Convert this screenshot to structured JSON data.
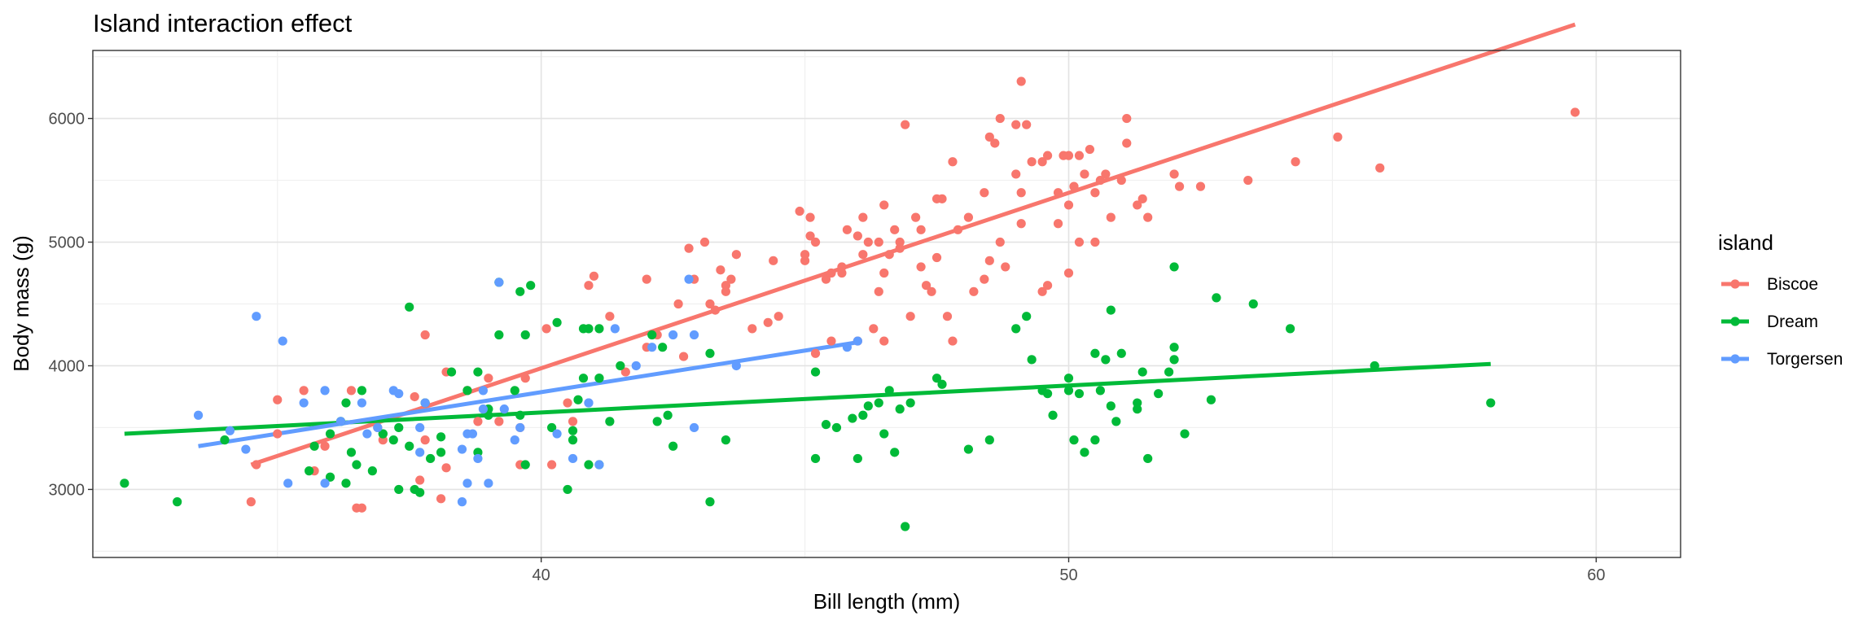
{
  "chart_data": {
    "type": "scatter",
    "title": "Island interaction effect",
    "xlabel": "Bill length (mm)",
    "ylabel": "Body mass (g)",
    "xlim": [
      31.5,
      61.6
    ],
    "ylim": [
      2450,
      6550
    ],
    "x_ticks": [
      40,
      50,
      60
    ],
    "y_ticks": [
      3000,
      4000,
      5000,
      6000
    ],
    "grid": true,
    "legend": {
      "title": "island",
      "position": "right"
    },
    "series": [
      {
        "name": "Biscoe",
        "color": "#F8766D",
        "points": [
          [
            34.5,
            2900
          ],
          [
            34.6,
            3200
          ],
          [
            35.0,
            3725
          ],
          [
            35.0,
            3450
          ],
          [
            35.5,
            3800
          ],
          [
            35.7,
            3150
          ],
          [
            35.9,
            3350
          ],
          [
            36.4,
            3800
          ],
          [
            36.5,
            2850
          ],
          [
            36.6,
            2850
          ],
          [
            36.9,
            3500
          ],
          [
            37.0,
            3400
          ],
          [
            37.6,
            3750
          ],
          [
            37.7,
            3075
          ],
          [
            37.8,
            3400
          ],
          [
            37.8,
            4250
          ],
          [
            37.8,
            3700
          ],
          [
            38.1,
            2925
          ],
          [
            38.2,
            3950
          ],
          [
            38.2,
            3175
          ],
          [
            38.6,
            3800
          ],
          [
            38.8,
            3550
          ],
          [
            39.0,
            3900
          ],
          [
            39.2,
            3550
          ],
          [
            39.6,
            3500
          ],
          [
            39.6,
            3200
          ],
          [
            39.7,
            3900
          ],
          [
            40.1,
            4300
          ],
          [
            40.2,
            3200
          ],
          [
            40.5,
            3700
          ],
          [
            40.6,
            3550
          ],
          [
            40.9,
            4650
          ],
          [
            41.0,
            4725
          ],
          [
            41.3,
            4400
          ],
          [
            41.6,
            3950
          ],
          [
            42.0,
            4700
          ],
          [
            42.0,
            4150
          ],
          [
            42.2,
            4250
          ],
          [
            42.7,
            4075
          ],
          [
            42.8,
            4950
          ],
          [
            42.9,
            4700
          ],
          [
            43.1,
            5000
          ],
          [
            43.3,
            4450
          ],
          [
            43.4,
            4775
          ],
          [
            43.5,
            4600
          ],
          [
            43.5,
            4650
          ],
          [
            43.6,
            4700
          ],
          [
            43.7,
            4900
          ],
          [
            44.0,
            4300
          ],
          [
            44.3,
            4350
          ],
          [
            44.5,
            4400
          ],
          [
            44.9,
            5250
          ],
          [
            45.0,
            4850
          ],
          [
            45.0,
            4900
          ],
          [
            45.2,
            4100
          ],
          [
            45.5,
            4750
          ],
          [
            45.8,
            5100
          ],
          [
            46.0,
            4200
          ],
          [
            46.0,
            5050
          ],
          [
            46.1,
            4900
          ],
          [
            46.2,
            5000
          ],
          [
            46.3,
            4300
          ],
          [
            46.4,
            5000
          ],
          [
            46.5,
            5300
          ],
          [
            46.5,
            4200
          ],
          [
            46.5,
            4750
          ],
          [
            46.8,
            5000
          ],
          [
            46.9,
            5950
          ],
          [
            47.0,
            4400
          ],
          [
            47.1,
            5200
          ],
          [
            47.2,
            4800
          ],
          [
            47.3,
            4650
          ],
          [
            47.4,
            4600
          ],
          [
            47.5,
            4875
          ],
          [
            47.7,
            4400
          ],
          [
            47.8,
            4200
          ],
          [
            47.9,
            5100
          ],
          [
            48.1,
            5200
          ],
          [
            48.2,
            4600
          ],
          [
            48.4,
            4700
          ],
          [
            48.5,
            4850
          ],
          [
            48.7,
            5000
          ],
          [
            48.8,
            4800
          ],
          [
            49.0,
            5550
          ],
          [
            49.1,
            5400
          ],
          [
            49.3,
            5650
          ],
          [
            49.5,
            4600
          ],
          [
            49.6,
            4650
          ],
          [
            49.8,
            5150
          ],
          [
            50.0,
            5300
          ],
          [
            50.0,
            4750
          ],
          [
            50.1,
            5450
          ],
          [
            50.2,
            5000
          ],
          [
            50.3,
            5550
          ],
          [
            50.4,
            5750
          ],
          [
            50.5,
            5400
          ],
          [
            50.6,
            5500
          ],
          [
            50.8,
            5200
          ],
          [
            51.1,
            5800
          ],
          [
            51.3,
            5300
          ],
          [
            51.4,
            5350
          ],
          [
            51.5,
            5200
          ],
          [
            52.1,
            5450
          ],
          [
            52.5,
            5450
          ],
          [
            53.4,
            5500
          ],
          [
            54.3,
            5650
          ],
          [
            55.1,
            5850
          ],
          [
            55.9,
            5600
          ],
          [
            59.6,
            6050
          ],
          [
            49.2,
            5950
          ],
          [
            49.5,
            5650
          ],
          [
            48.5,
            5850
          ],
          [
            47.6,
            5350
          ],
          [
            46.7,
            5100
          ],
          [
            45.4,
            4700
          ],
          [
            44.4,
            4850
          ],
          [
            43.2,
            4500
          ],
          [
            45.1,
            5050
          ],
          [
            48.4,
            5400
          ],
          [
            49.9,
            5700
          ],
          [
            50.7,
            5550
          ],
          [
            46.4,
            4600
          ],
          [
            47.5,
            5350
          ],
          [
            45.2,
            5000
          ],
          [
            42.6,
            4500
          ],
          [
            50.5,
            5000
          ],
          [
            45.7,
            4800
          ],
          [
            46.1,
            5200
          ],
          [
            48.6,
            5800
          ],
          [
            45.1,
            5200
          ],
          [
            49.6,
            5700
          ],
          [
            49.0,
            5950
          ],
          [
            51.1,
            6000
          ],
          [
            48.7,
            6000
          ],
          [
            49.1,
            6300
          ],
          [
            50.2,
            5700
          ],
          [
            47.8,
            5650
          ],
          [
            50.0,
            5700
          ],
          [
            51.0,
            5500
          ],
          [
            52.0,
            5550
          ],
          [
            46.6,
            4900
          ],
          [
            45.5,
            4200
          ],
          [
            46.8,
            4950
          ],
          [
            47.2,
            5100
          ],
          [
            49.1,
            5150
          ],
          [
            45.7,
            4750
          ],
          [
            49.8,
            5400
          ]
        ],
        "fit": [
          [
            34.5,
            3200
          ],
          [
            59.6,
            6760
          ]
        ]
      },
      {
        "name": "Dream",
        "color": "#00BA38",
        "points": [
          [
            32.1,
            3050
          ],
          [
            33.1,
            2900
          ],
          [
            34.0,
            3400
          ],
          [
            35.6,
            3150
          ],
          [
            35.7,
            3350
          ],
          [
            36.0,
            3450
          ],
          [
            36.0,
            3100
          ],
          [
            36.2,
            3550
          ],
          [
            36.3,
            3700
          ],
          [
            36.4,
            3300
          ],
          [
            36.6,
            3800
          ],
          [
            36.8,
            3150
          ],
          [
            37.0,
            3450
          ],
          [
            37.2,
            3400
          ],
          [
            37.3,
            3000
          ],
          [
            37.3,
            3500
          ],
          [
            37.5,
            3350
          ],
          [
            37.6,
            3000
          ],
          [
            37.7,
            2975
          ],
          [
            37.8,
            3700
          ],
          [
            37.9,
            3250
          ],
          [
            38.1,
            3425
          ],
          [
            38.3,
            3950
          ],
          [
            38.8,
            3950
          ],
          [
            39.0,
            3650
          ],
          [
            39.2,
            4250
          ],
          [
            39.5,
            3800
          ],
          [
            39.6,
            4600
          ],
          [
            39.7,
            4250
          ],
          [
            39.8,
            4650
          ],
          [
            40.2,
            3500
          ],
          [
            40.3,
            4350
          ],
          [
            40.5,
            3000
          ],
          [
            40.7,
            3725
          ],
          [
            40.8,
            4300
          ],
          [
            40.9,
            3200
          ],
          [
            41.1,
            3900
          ],
          [
            41.1,
            4300
          ],
          [
            41.3,
            3550
          ],
          [
            41.5,
            4000
          ],
          [
            42.2,
            3550
          ],
          [
            42.3,
            4150
          ],
          [
            42.4,
            3600
          ],
          [
            42.5,
            3350
          ],
          [
            43.2,
            2900
          ],
          [
            43.5,
            3400
          ],
          [
            45.2,
            3950
          ],
          [
            45.4,
            3525
          ],
          [
            45.6,
            3500
          ],
          [
            45.9,
            3575
          ],
          [
            46.0,
            3250
          ],
          [
            46.1,
            3600
          ],
          [
            46.2,
            3675
          ],
          [
            46.4,
            3700
          ],
          [
            46.6,
            3800
          ],
          [
            46.7,
            3300
          ],
          [
            46.8,
            3650
          ],
          [
            46.9,
            2700
          ],
          [
            47.0,
            3700
          ],
          [
            47.5,
            3900
          ],
          [
            47.6,
            3850
          ],
          [
            48.1,
            3325
          ],
          [
            48.5,
            3400
          ],
          [
            49.0,
            4300
          ],
          [
            49.2,
            4400
          ],
          [
            49.5,
            3800
          ],
          [
            49.7,
            3600
          ],
          [
            50.0,
            3900
          ],
          [
            50.1,
            3400
          ],
          [
            50.3,
            3300
          ],
          [
            50.5,
            3400
          ],
          [
            50.6,
            3800
          ],
          [
            50.7,
            4050
          ],
          [
            50.8,
            4450
          ],
          [
            50.9,
            3550
          ],
          [
            51.0,
            4100
          ],
          [
            51.3,
            3700
          ],
          [
            51.4,
            3950
          ],
          [
            51.5,
            3250
          ],
          [
            51.7,
            3775
          ],
          [
            52.0,
            4050
          ],
          [
            52.0,
            4800
          ],
          [
            52.2,
            3450
          ],
          [
            52.7,
            3725
          ],
          [
            52.8,
            4550
          ],
          [
            53.5,
            4500
          ],
          [
            54.2,
            4300
          ],
          [
            55.8,
            4000
          ],
          [
            58.0,
            3700
          ],
          [
            49.3,
            4050
          ],
          [
            50.2,
            3775
          ],
          [
            51.9,
            3950
          ],
          [
            52.0,
            4150
          ],
          [
            50.5,
            4100
          ],
          [
            50.8,
            3675
          ],
          [
            51.3,
            3650
          ],
          [
            49.6,
            3775
          ],
          [
            50.0,
            3800
          ],
          [
            43.2,
            4100
          ],
          [
            46.5,
            3450
          ],
          [
            45.2,
            3250
          ],
          [
            40.6,
            3475
          ],
          [
            41.1,
            3200
          ],
          [
            39.6,
            3600
          ],
          [
            38.1,
            3300
          ],
          [
            36.5,
            3200
          ],
          [
            40.9,
            4300
          ],
          [
            42.1,
            4250
          ],
          [
            40.8,
            3900
          ],
          [
            39.0,
            3600
          ],
          [
            37.5,
            4475
          ],
          [
            38.6,
            3800
          ],
          [
            41.1,
            3900
          ],
          [
            39.7,
            3200
          ],
          [
            40.6,
            3400
          ],
          [
            39.2,
            4675
          ],
          [
            38.8,
            3300
          ],
          [
            37.0,
            3450
          ],
          [
            36.3,
            3050
          ]
        ],
        "fit": [
          [
            32.1,
            3450
          ],
          [
            58.0,
            4015
          ]
        ]
      },
      {
        "name": "Torgersen",
        "color": "#619CFF",
        "points": [
          [
            33.5,
            3600
          ],
          [
            34.1,
            3475
          ],
          [
            34.4,
            3325
          ],
          [
            34.6,
            4400
          ],
          [
            35.1,
            4200
          ],
          [
            35.2,
            3050
          ],
          [
            35.5,
            3700
          ],
          [
            35.9,
            3800
          ],
          [
            36.2,
            3550
          ],
          [
            36.6,
            3700
          ],
          [
            36.7,
            3450
          ],
          [
            37.2,
            3800
          ],
          [
            37.3,
            3775
          ],
          [
            37.7,
            3500
          ],
          [
            37.8,
            3700
          ],
          [
            38.5,
            3325
          ],
          [
            38.6,
            3050
          ],
          [
            38.6,
            3450
          ],
          [
            38.7,
            3450
          ],
          [
            38.8,
            3250
          ],
          [
            38.9,
            3650
          ],
          [
            39.0,
            3050
          ],
          [
            39.2,
            4675
          ],
          [
            39.3,
            3650
          ],
          [
            39.5,
            3400
          ],
          [
            39.6,
            3500
          ],
          [
            40.3,
            3450
          ],
          [
            40.6,
            3250
          ],
          [
            40.9,
            3700
          ],
          [
            41.1,
            3200
          ],
          [
            41.4,
            4300
          ],
          [
            42.1,
            4150
          ],
          [
            42.5,
            4250
          ],
          [
            42.8,
            4700
          ],
          [
            42.9,
            3500
          ],
          [
            43.7,
            4000
          ],
          [
            45.8,
            4150
          ],
          [
            46.0,
            4200
          ],
          [
            36.9,
            3500
          ],
          [
            38.5,
            2900
          ],
          [
            37.7,
            3300
          ],
          [
            35.9,
            3050
          ],
          [
            38.9,
            3800
          ],
          [
            40.9,
            3700
          ],
          [
            41.8,
            4000
          ],
          [
            42.9,
            4250
          ]
        ],
        "fit": [
          [
            33.5,
            3350
          ],
          [
            46.0,
            4190
          ]
        ]
      }
    ]
  }
}
